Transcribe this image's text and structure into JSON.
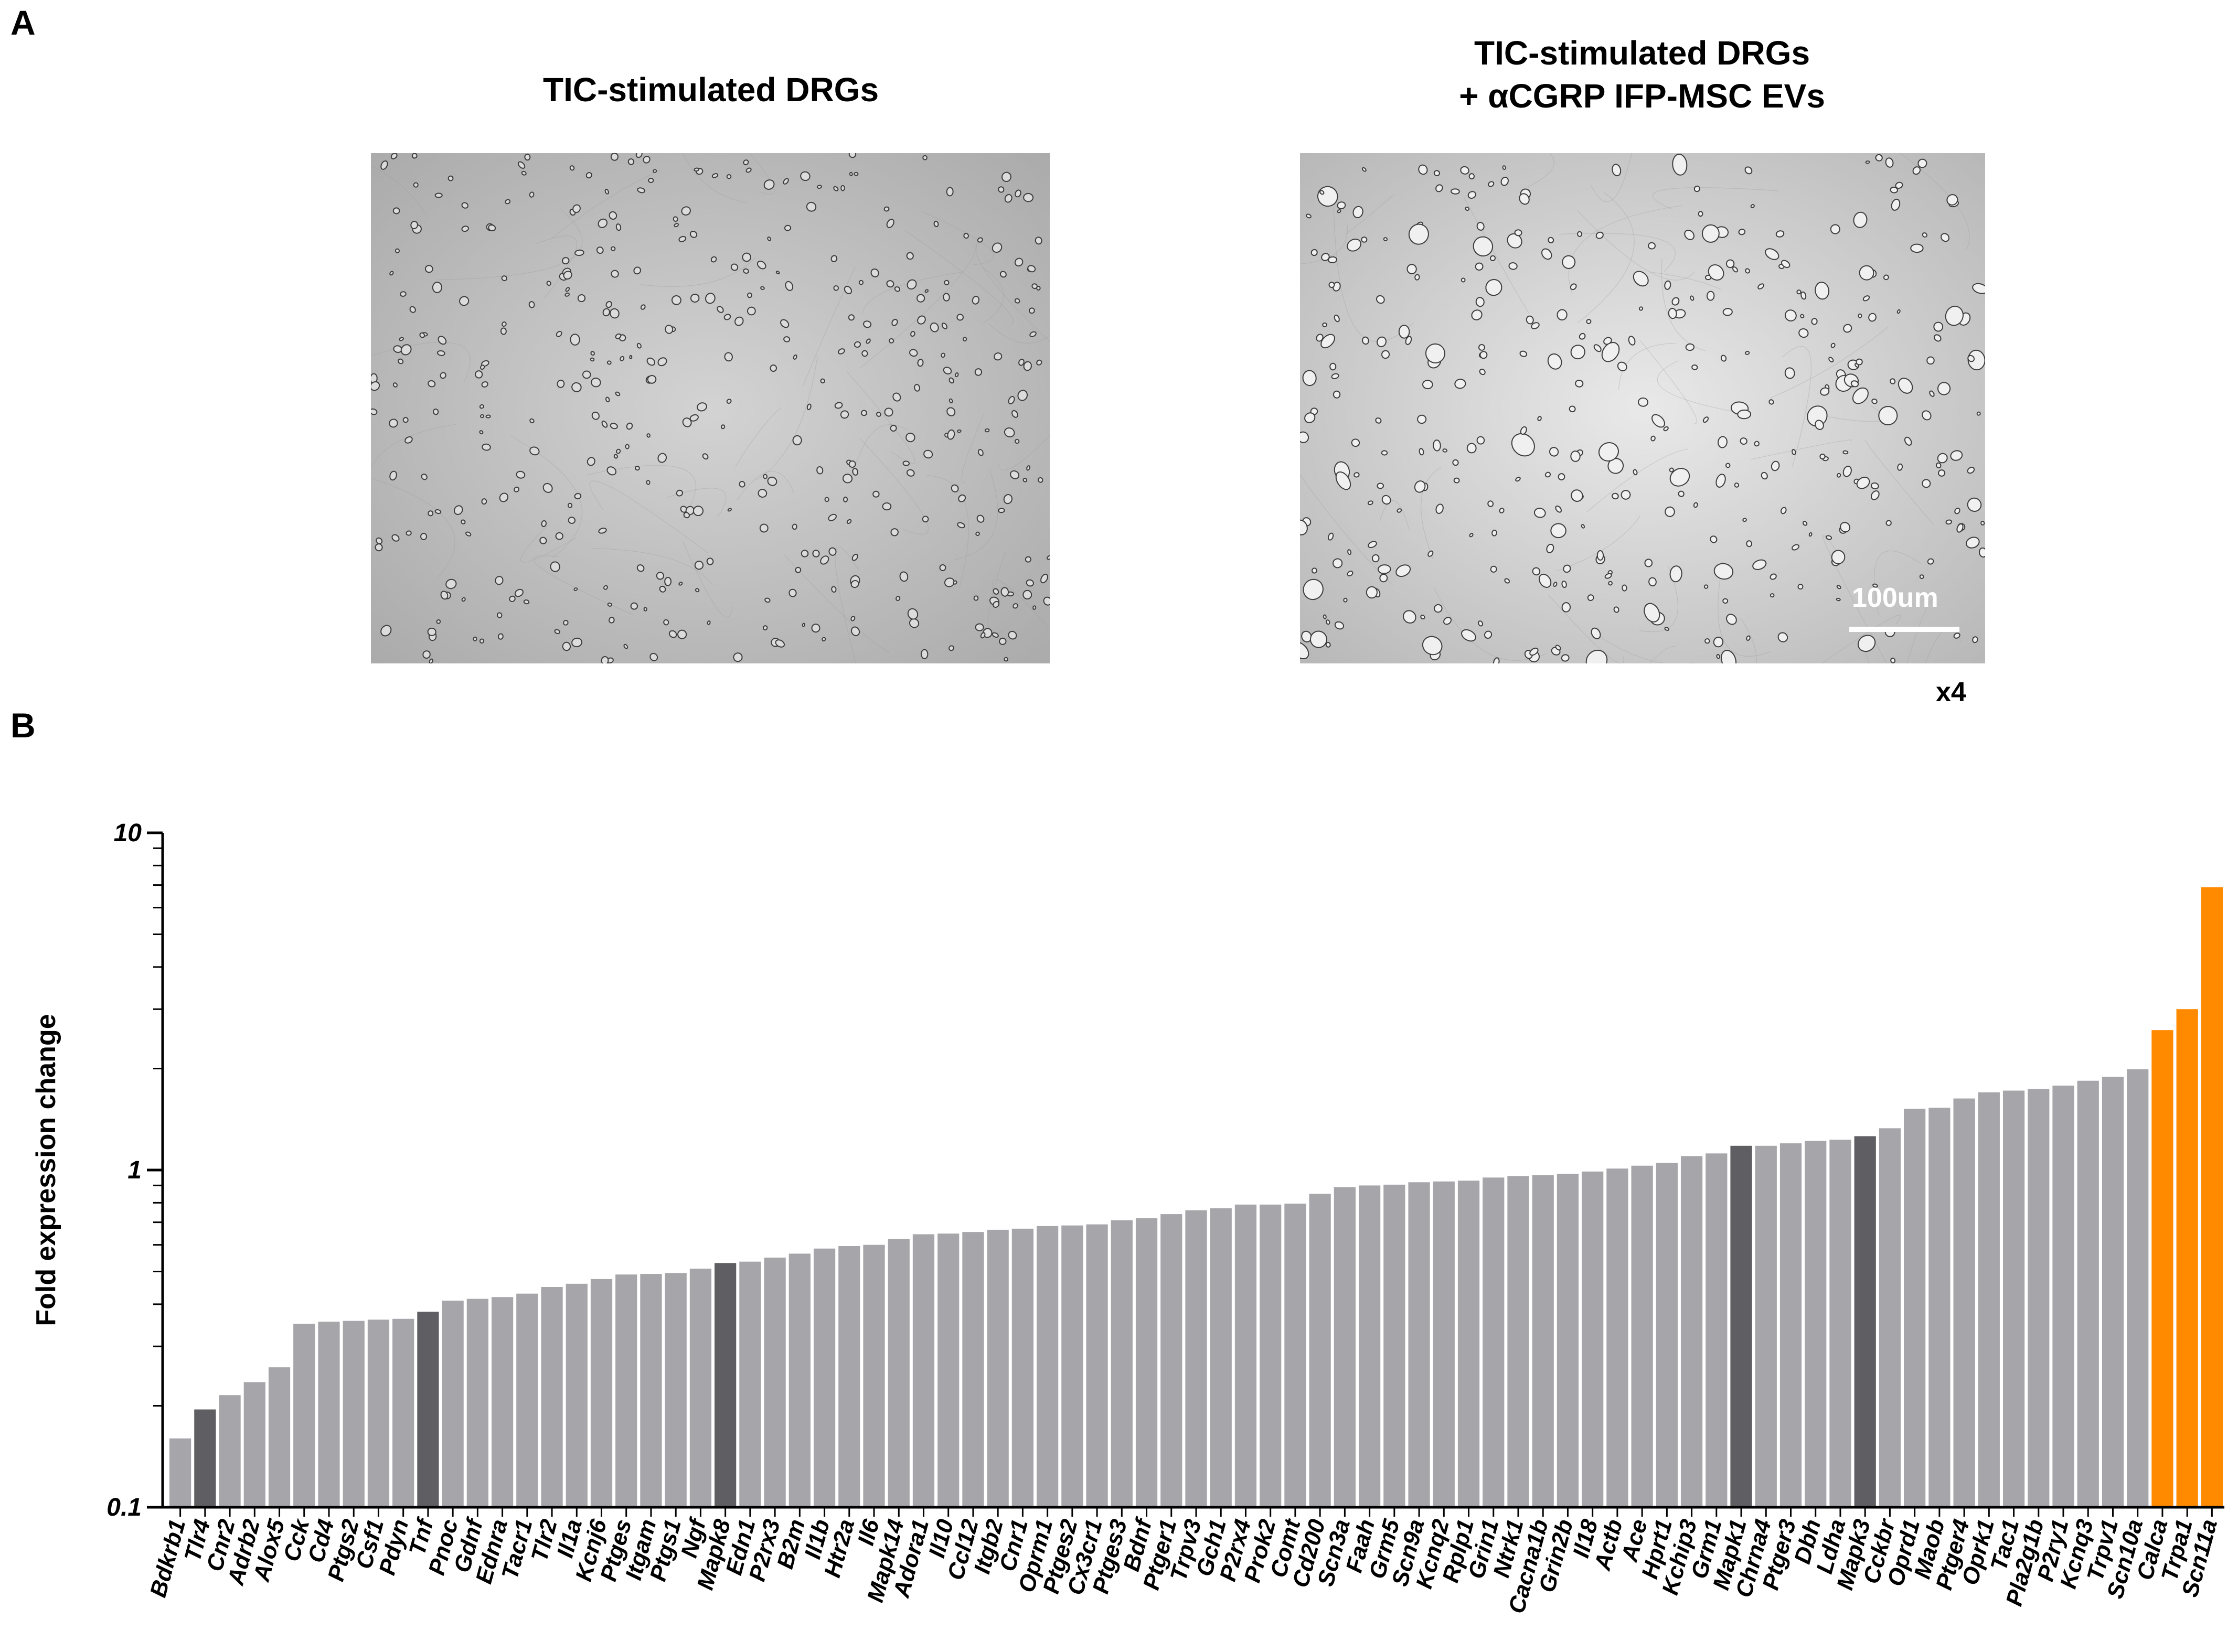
{
  "panel_a": {
    "letter": "A",
    "left_caption": "TIC-stimulated DRGs",
    "right_caption_line1": "TIC-stimulated DRGs",
    "right_caption_line2": "+ αCGRP IFP-MSC EVs",
    "scale_bar_label": "100um",
    "magnification": "x4"
  },
  "panel_b": {
    "letter": "B"
  },
  "colors": {
    "bar_default": "#a5a5aa",
    "bar_dark": "#5f5f63",
    "bar_orange": "#ff8a00",
    "axis": "#000000"
  },
  "chart_data": {
    "type": "bar",
    "ylabel": "Fold expression change",
    "yscale": "log",
    "ylim": [
      0.1,
      10
    ],
    "yticks": [
      "0.1",
      "1",
      "10"
    ],
    "categories": [
      "Bdkrb1",
      "Tlr4",
      "Cnr2",
      "Adrb2",
      "Alox5",
      "Cck",
      "Cd4",
      "Ptgs2",
      "Csf1",
      "Pdyn",
      "Tnf",
      "Pnoc",
      "Gdnf",
      "Ednra",
      "Tacr1",
      "Tlr2",
      "Il1a",
      "Kcnj6",
      "Ptges",
      "Itgam",
      "Ptgs1",
      "Ngf",
      "Mapk8",
      "Edn1",
      "P2rx3",
      "B2m",
      "Il1b",
      "Htr2a",
      "Il6",
      "Mapk14",
      "Adora1",
      "Il10",
      "Ccl12",
      "Itgb2",
      "Cnr1",
      "Oprm1",
      "Ptges2",
      "Cx3cr1",
      "Ptges3",
      "Bdnf",
      "Ptger1",
      "Trpv3",
      "Gch1",
      "P2rx4",
      "Prok2",
      "Comt",
      "Cd200",
      "Scn3a",
      "Faah",
      "Grm5",
      "Scn9a",
      "Kcnq2",
      "Rplp1",
      "Grin1",
      "Ntrk1",
      "Cacna1b",
      "Grin2b",
      "Il18",
      "Actb",
      "Ace",
      "Hprt1",
      "Kchip3",
      "Grm1",
      "Mapk1",
      "Chrna4",
      "Ptger3",
      "Dbh",
      "Ldha",
      "Mapk3",
      "Cckbr",
      "Oprd1",
      "Maob",
      "Ptger4",
      "Oprk1",
      "Tac1",
      "Pla2g1b",
      "P2ry1",
      "Kcnq3",
      "Trpv1",
      "Scn10a",
      "Calca",
      "Trpa1",
      "Scn11a"
    ],
    "values": [
      0.16,
      0.195,
      0.215,
      0.235,
      0.26,
      0.35,
      0.355,
      0.357,
      0.36,
      0.362,
      0.38,
      0.41,
      0.415,
      0.42,
      0.43,
      0.45,
      0.46,
      0.475,
      0.49,
      0.492,
      0.495,
      0.51,
      0.53,
      0.535,
      0.55,
      0.565,
      0.585,
      0.595,
      0.6,
      0.625,
      0.645,
      0.648,
      0.655,
      0.665,
      0.67,
      0.682,
      0.685,
      0.69,
      0.71,
      0.72,
      0.74,
      0.76,
      0.77,
      0.79,
      0.79,
      0.795,
      0.85,
      0.89,
      0.9,
      0.905,
      0.92,
      0.925,
      0.93,
      0.95,
      0.96,
      0.965,
      0.975,
      0.99,
      1.01,
      1.03,
      1.05,
      1.1,
      1.12,
      1.18,
      1.18,
      1.2,
      1.22,
      1.23,
      1.26,
      1.33,
      1.52,
      1.53,
      1.63,
      1.7,
      1.72,
      1.74,
      1.78,
      1.84,
      1.89,
      1.99,
      2.6,
      3.0,
      6.9
    ],
    "highlight_dark": [
      "Tlr4",
      "Tnf",
      "Mapk8",
      "Mapk1",
      "Mapk3"
    ],
    "highlight_orange": [
      "Calca",
      "Trpa1",
      "Scn11a"
    ]
  }
}
